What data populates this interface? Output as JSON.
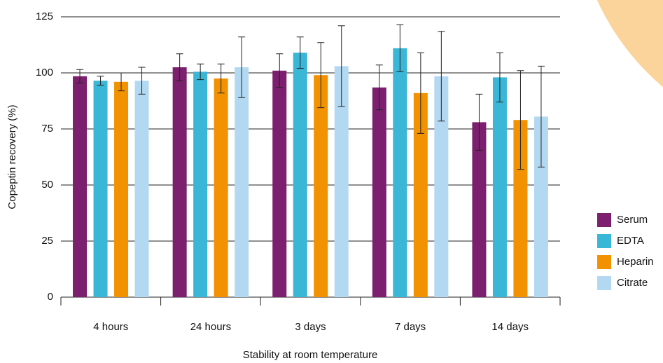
{
  "chart_data": {
    "type": "bar",
    "x_label": "Stability at room temperature",
    "y_label": "Copeptin recovery (%)",
    "categories": [
      "4 hours",
      "24 hours",
      "3 days",
      "7 days",
      "14 days"
    ],
    "series": [
      {
        "name": "Serum",
        "color": "#7b1f6e",
        "values": [
          98.5,
          102.5,
          101,
          93.5,
          78
        ],
        "errors": [
          3,
          6,
          7.5,
          10,
          12.5
        ]
      },
      {
        "name": "EDTA",
        "color": "#3ab6d6",
        "values": [
          96.5,
          100.5,
          109,
          111,
          98
        ],
        "errors": [
          2,
          3.5,
          7,
          10.5,
          11
        ]
      },
      {
        "name": "Heparin",
        "color": "#f39200",
        "values": [
          96,
          97.5,
          99,
          91,
          79
        ],
        "errors": [
          4,
          6.5,
          14.5,
          18,
          22
        ]
      },
      {
        "name": "Citrate",
        "color": "#b3d9f2",
        "values": [
          96.5,
          102.5,
          103,
          98.5,
          80.5
        ],
        "errors": [
          6,
          13.5,
          18,
          20,
          22.5
        ]
      }
    ],
    "ylim": [
      0,
      125
    ],
    "yticks": [
      0,
      25,
      50,
      75,
      100,
      125
    ],
    "grid": true,
    "legend": "right"
  }
}
